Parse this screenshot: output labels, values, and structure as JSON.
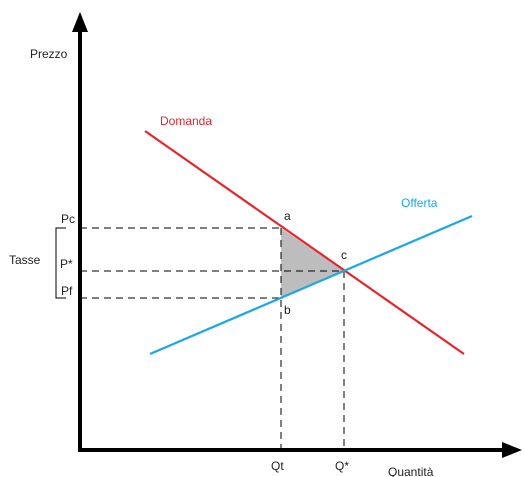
{
  "labels": {
    "y_axis": "Prezzo",
    "x_axis": "Quantità",
    "demand": "Domanda",
    "supply": "Offerta",
    "point_a": "a",
    "point_b": "b",
    "point_c": "c",
    "price_consumer": "Pc",
    "price_equilibrium": "P*",
    "price_producer": "Pf",
    "tax": "Tasse",
    "quantity_tax": "Qt",
    "quantity_equilibrium": "Q*"
  },
  "colors": {
    "demand": "#e0282e",
    "supply": "#1ea7e1",
    "axis": "#000000",
    "deadweight_loss": "#bdbdbd",
    "guide_lines": "#000000"
  }
}
